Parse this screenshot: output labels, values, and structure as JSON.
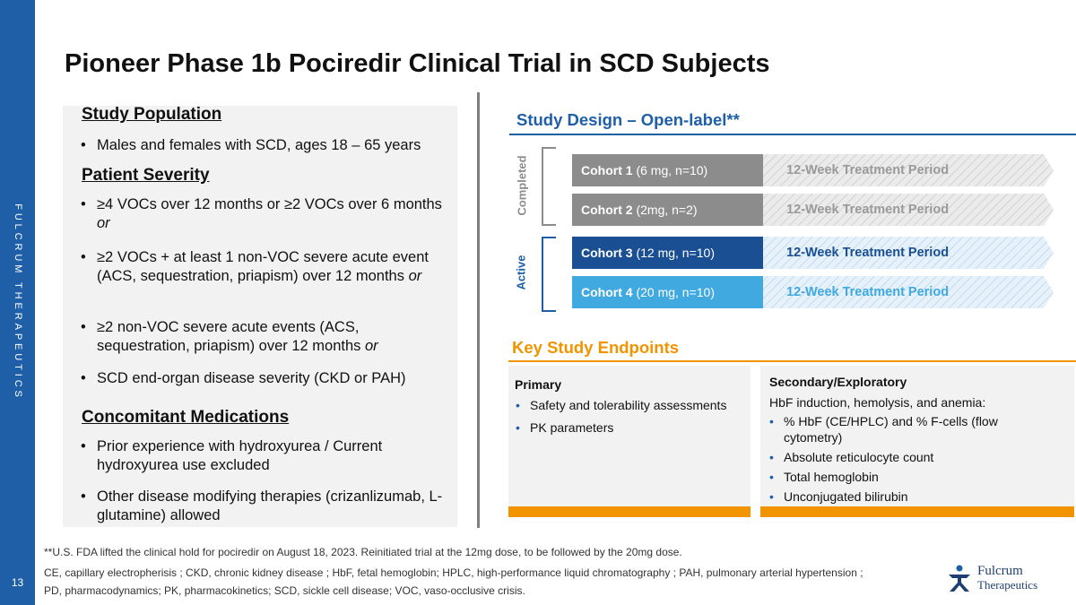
{
  "sidebar": {
    "brand_text": "FULCRUM THERAPEUTICS",
    "page_number": "13"
  },
  "title": "Pioneer Phase 1b Pociredir Clinical Trial in SCD Subjects",
  "left": {
    "study_population": {
      "heading": "Study Population",
      "items": [
        "Males and females with SCD, ages 18 – 65 years"
      ]
    },
    "patient_severity": {
      "heading": "Patient Severity",
      "items": [
        {
          "text": "≥4 VOCs over 12 months or ≥2 VOCs over 6 months",
          "em": "or"
        },
        {
          "text": "≥2 VOCs + at least 1 non-VOC severe acute event (ACS, sequestration, priapism) over 12 months",
          "em": "or"
        },
        {
          "text": "≥2 non-VOC severe acute events (ACS, sequestration, priapism) over 12 months",
          "em": "or"
        },
        {
          "text": "SCD end-organ disease severity (CKD or PAH)",
          "em": ""
        }
      ]
    },
    "concomitant": {
      "heading": "Concomitant Medications",
      "items": [
        "Prior experience with hydroxyurea / Current hydroxyurea use excluded",
        "Other disease modifying therapies (crizanlizumab, L-glutamine) allowed"
      ]
    }
  },
  "study_design": {
    "title": "Study Design – Open-label**",
    "groups": {
      "completed": "Completed",
      "active": "Active"
    },
    "cohorts": [
      {
        "name": "Cohort 1",
        "detail": " (6 mg, n=10)",
        "period": "12-Week Treatment Period"
      },
      {
        "name": "Cohort 2",
        "detail": " (2mg, n=2)",
        "period": "12-Week Treatment Period"
      },
      {
        "name": "Cohort 3",
        "detail": " (12 mg, n=10)",
        "period": "12-Week Treatment Period"
      },
      {
        "name": "Cohort 4",
        "detail": " (20 mg, n=10)",
        "period": "12-Week Treatment Period"
      }
    ]
  },
  "endpoints": {
    "title": "Key Study Endpoints",
    "primary": {
      "title": "Primary",
      "items": [
        "Safety and tolerability assessments",
        "PK parameters"
      ]
    },
    "secondary": {
      "title": "Secondary/Exploratory",
      "intro": "HbF induction, hemolysis, and anemia:",
      "items": [
        "% HbF (CE/HPLC) and % F-cells (flow cytometry)",
        "Absolute reticulocyte count",
        "Total hemoglobin",
        "Unconjugated bilirubin"
      ]
    }
  },
  "footnotes": [
    "**U.S. FDA lifted the clinical hold for pociredir on August 18, 2023. Reinitiated trial at the 12mg dose, to be followed by the 20mg dose.",
    "CE, capillary electropherisis ; CKD, chronic kidney disease ; HbF, fetal hemoglobin; HPLC, high-performance liquid chromatography ; PAH, pulmonary arterial hypertension ;",
    "PD, pharmacodynamics; PK, pharmacokinetics; SCD, sickle cell disease; VOC, vaso-occlusive crisis."
  ],
  "logo": {
    "line1": "Fulcrum",
    "line2": "Therapeutics"
  },
  "colors": {
    "brand_blue": "#1f5fa8",
    "orange": "#f29400",
    "gray_cohort": "#8c8c8c",
    "navy_cohort": "#1a4f93",
    "light_blue_cohort": "#3fa9e0"
  }
}
